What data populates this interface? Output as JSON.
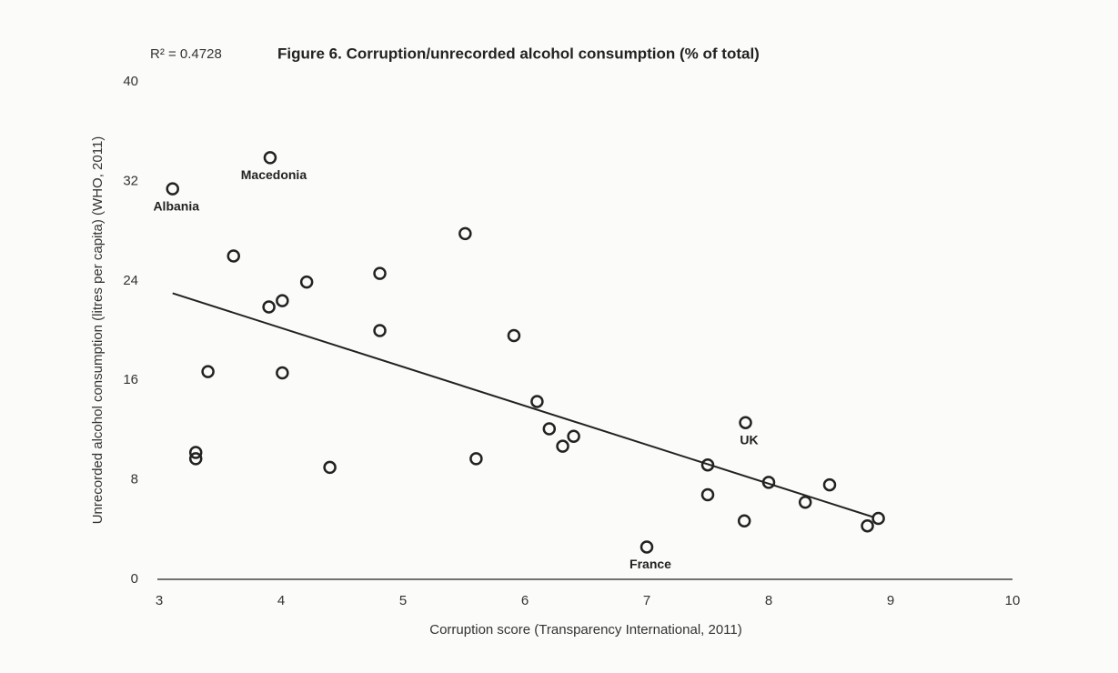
{
  "chart_data": {
    "type": "scatter",
    "title": "Figure 6. Corruption/unrecorded alcohol consumption (% of total)",
    "annotation": "R² = 0.4728",
    "x_label": "Corruption score (Transparency International, 2011)",
    "y_label": "Unrecorded alcohol consumption (litres per capita) (WHO, 2011)",
    "xlim": [
      3,
      10
    ],
    "xticks": [
      3,
      4,
      5,
      6,
      7,
      8,
      9,
      10
    ],
    "ylim": [
      0,
      40
    ],
    "yticks": [
      0,
      8,
      16,
      24,
      32,
      40
    ],
    "color": "#222222",
    "series": [
      {
        "x": [
          3.11,
          3.91,
          3.61,
          3.9,
          4.01,
          4.21,
          4.81,
          4.81,
          5.51,
          3.4,
          4.01,
          3.3,
          3.3,
          4.4,
          5.6,
          5.91,
          6.1,
          6.2,
          6.31,
          6.4,
          7.0,
          7.5,
          7.5,
          7.81,
          7.8,
          8.0,
          8.3,
          8.5,
          8.81,
          8.9
        ],
        "values": [
          31.4,
          33.9,
          26.0,
          21.9,
          22.4,
          23.9,
          24.6,
          20.0,
          27.8,
          16.7,
          16.6,
          10.2,
          9.7,
          9.0,
          9.7,
          19.6,
          14.3,
          12.1,
          10.7,
          11.5,
          2.6,
          9.2,
          6.8,
          12.6,
          4.7,
          7.8,
          6.2,
          7.6,
          4.3,
          4.9
        ],
        "point_labels": [
          "Albania",
          "Macedonia",
          null,
          null,
          null,
          null,
          null,
          null,
          null,
          null,
          null,
          null,
          null,
          null,
          null,
          null,
          null,
          null,
          null,
          null,
          "France",
          null,
          null,
          "UK",
          null,
          null,
          null,
          null,
          null,
          null
        ]
      }
    ],
    "trendline": {
      "x": [
        3.11,
        8.86
      ],
      "y": [
        23.0,
        5.0
      ]
    }
  }
}
